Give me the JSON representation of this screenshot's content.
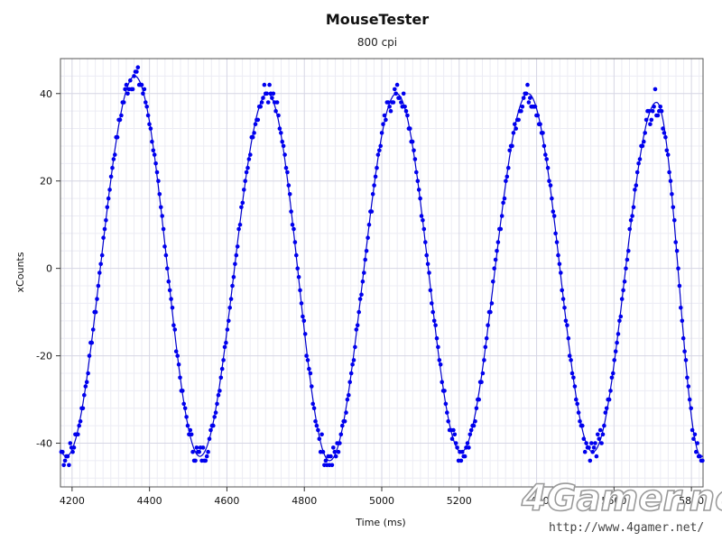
{
  "chart_data": {
    "type": "scatter",
    "title": "MouseTester",
    "subtitle": "800 cpi",
    "xlabel": "Time (ms)",
    "ylabel": "xCounts",
    "xlim": [
      4170,
      5830
    ],
    "ylim": [
      -50,
      48
    ],
    "xticks": [
      4200,
      4400,
      4600,
      4800,
      5000,
      5200,
      5400,
      5600,
      5800
    ],
    "yticks": [
      -40,
      -20,
      0,
      20,
      40
    ],
    "grid": true,
    "series": [
      {
        "kind": "points",
        "color": "#0000ee",
        "points_description": "sampled xCounts, approx 1 ms interval, oscillating sine-like",
        "wave": {
          "period_ms": 340,
          "first_peak_x": 4362,
          "peaks": [
            {
              "x": 4362,
              "y": 44
            },
            {
              "x": 4705,
              "y": 40
            },
            {
              "x": 5038,
              "y": 40
            },
            {
              "x": 5378,
              "y": 40
            },
            {
              "x": 5710,
              "y": 38
            }
          ],
          "troughs": [
            {
              "x": 4185,
              "y": -43
            },
            {
              "x": 4530,
              "y": -43
            },
            {
              "x": 4865,
              "y": -44
            },
            {
              "x": 5205,
              "y": -42
            },
            {
              "x": 5545,
              "y": -42
            },
            {
              "x": 5825,
              "y": -43
            }
          ]
        }
      },
      {
        "kind": "line",
        "color": "#0000cc"
      }
    ]
  },
  "watermark": {
    "logo_text": "4Gamer.net",
    "url": "http://www.4gamer.net/"
  }
}
